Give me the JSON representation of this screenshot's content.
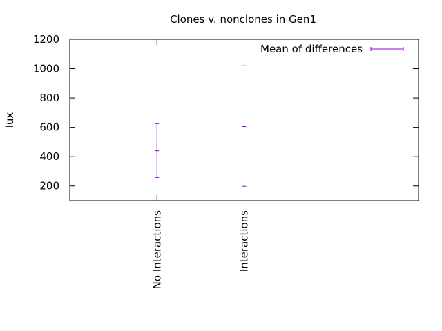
{
  "chart_data": {
    "type": "errorbar",
    "title": "Clones v. nonclones in Gen1",
    "xlabel": "",
    "ylabel": "lux",
    "categories": [
      "No Interactions",
      "Interactions"
    ],
    "ylim": [
      100,
      1200
    ],
    "yticks": [
      200,
      400,
      600,
      800,
      1000,
      1200
    ],
    "grid": false,
    "legend_position": "top-right",
    "series": [
      {
        "name": "Mean of differences",
        "color": "#9400d3",
        "points": [
          {
            "category": "No Interactions",
            "mean": 440,
            "low": 258,
            "high": 625
          },
          {
            "category": "Interactions",
            "mean": 605,
            "low": 198,
            "high": 1020
          }
        ]
      }
    ]
  }
}
